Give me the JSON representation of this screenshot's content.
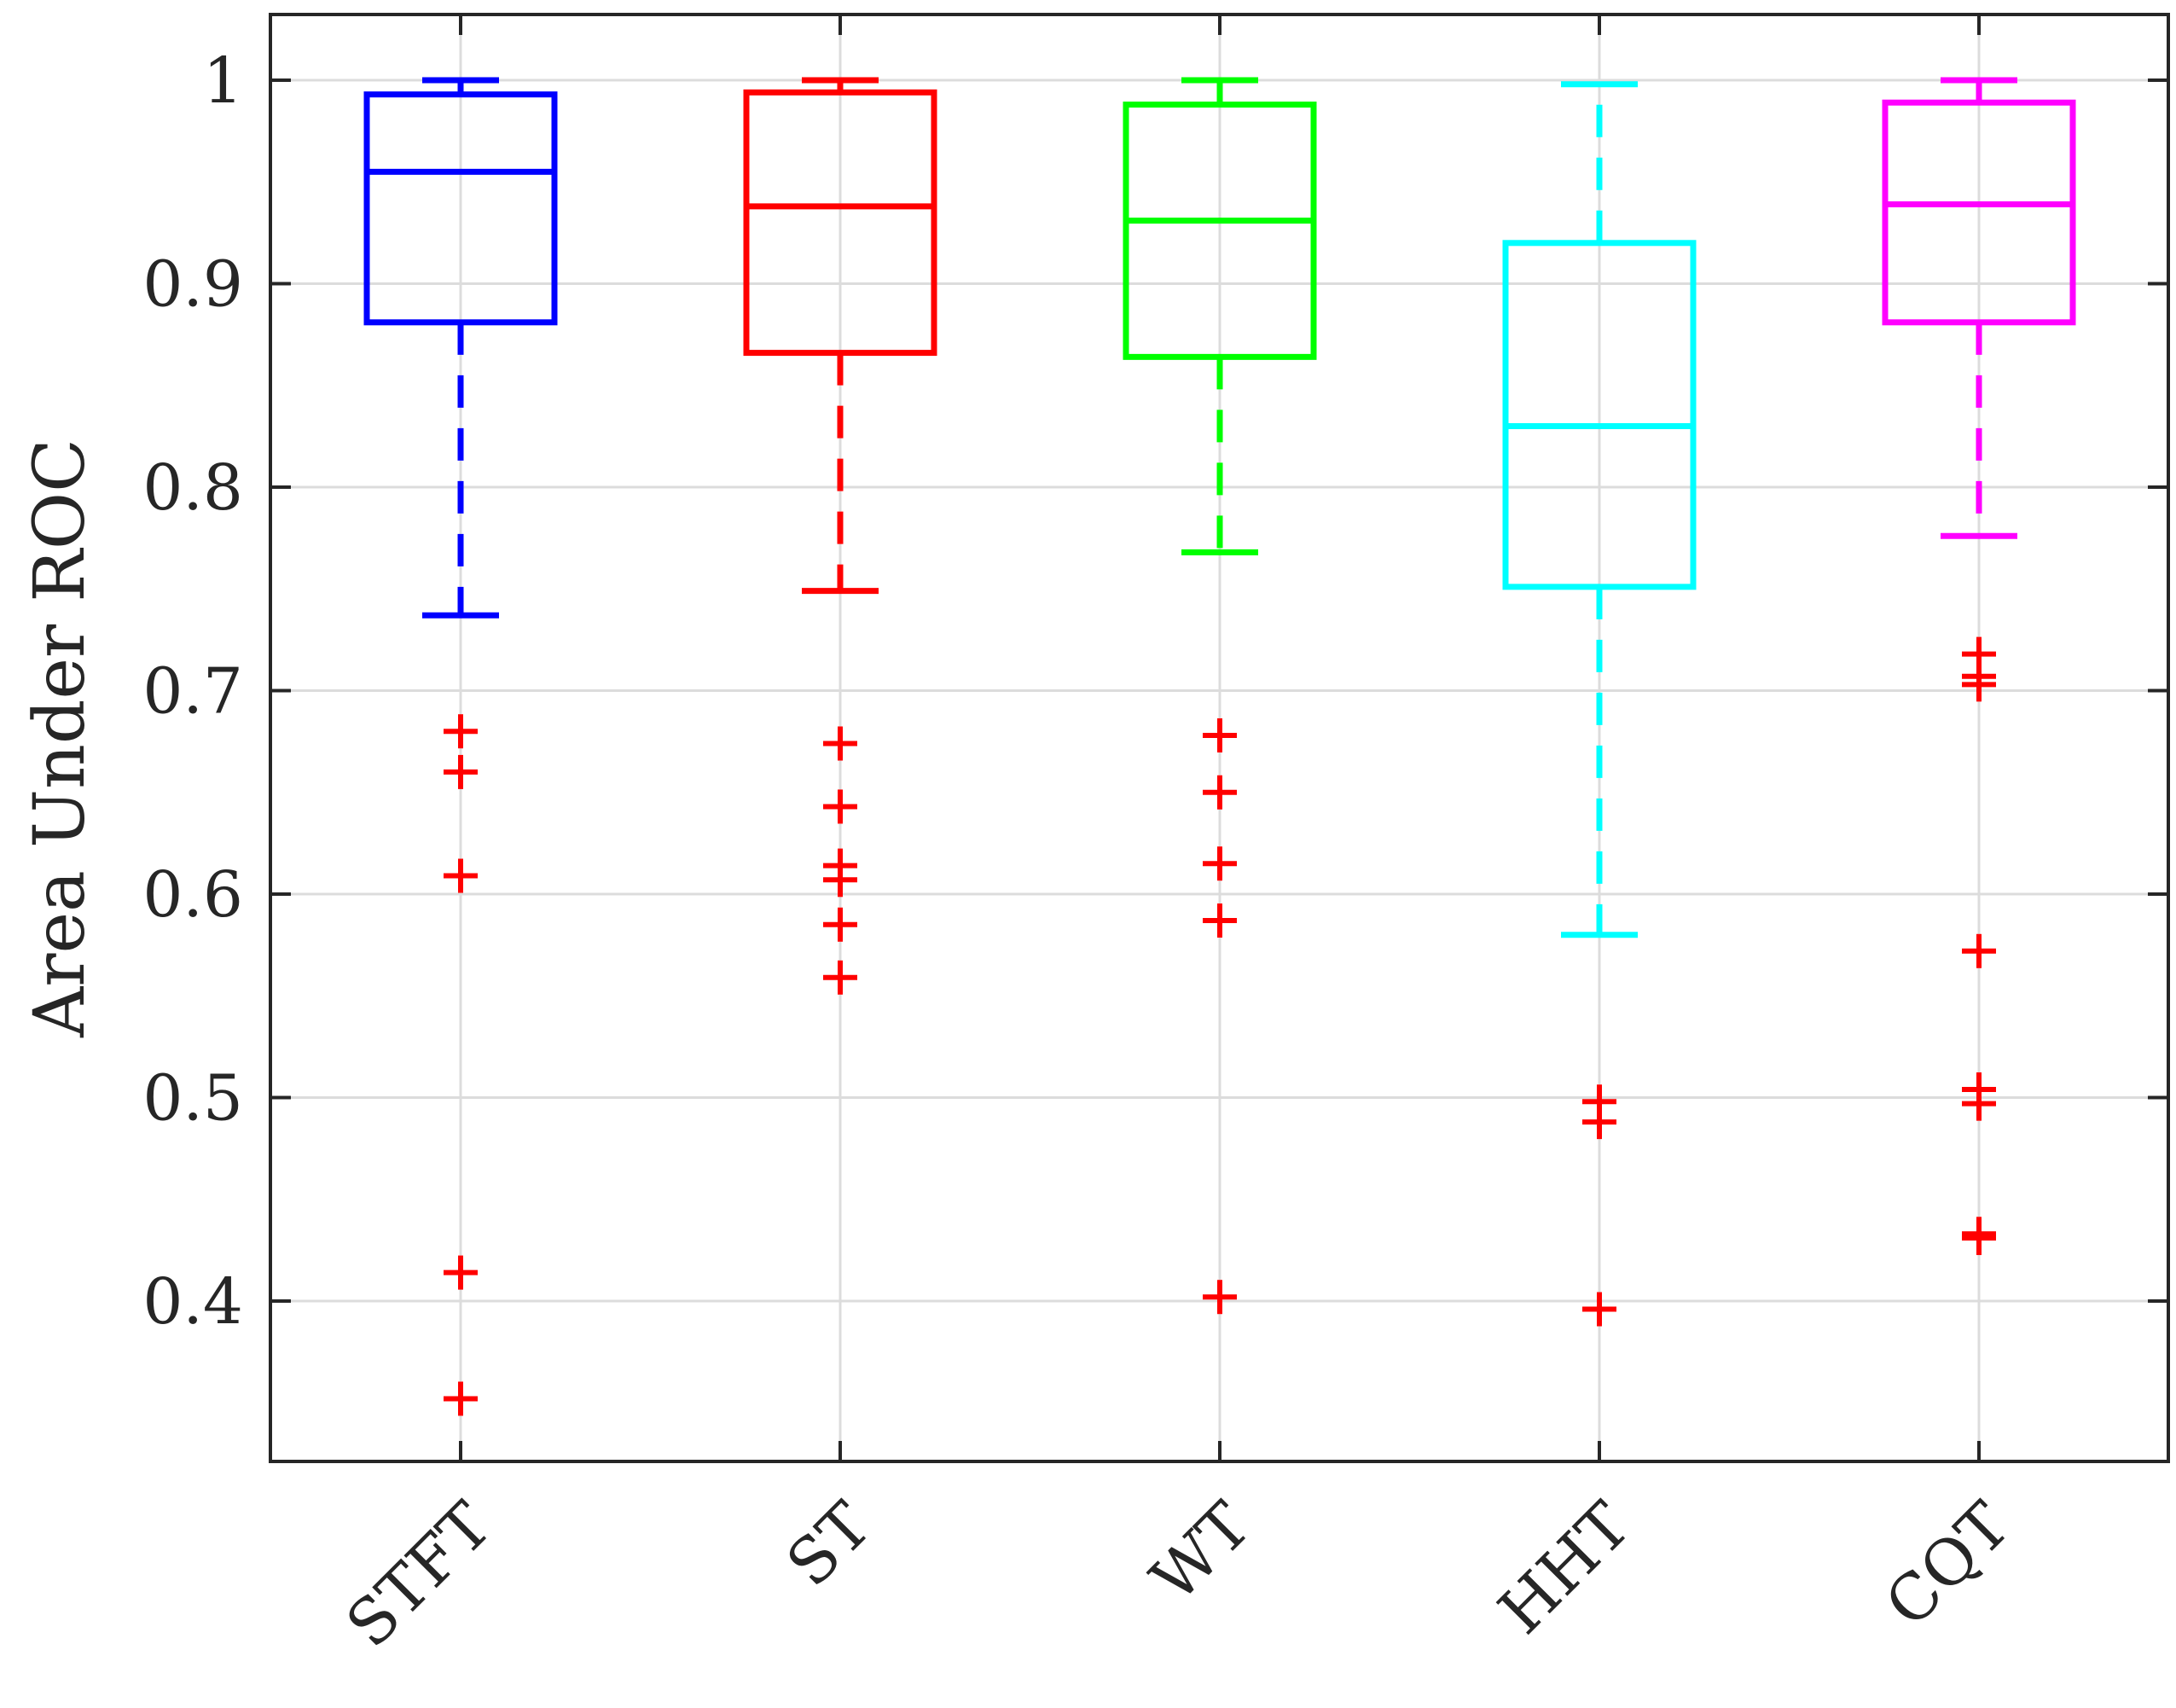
{
  "chart_data": {
    "type": "boxplot",
    "title": "",
    "xlabel": "",
    "ylabel": "Area Under ROC",
    "ylim": [
      0.32,
      1.03
    ],
    "yticks": [
      0.4,
      0.5,
      0.6,
      0.7,
      0.8,
      0.9,
      1
    ],
    "ytick_labels": [
      "0.4",
      "0.5",
      "0.6",
      "0.7",
      "0.8",
      "0.9",
      "1"
    ],
    "grid": true,
    "outlier_color": "#ff0000",
    "series": [
      {
        "name": "STFT",
        "color": "#0000ff",
        "whisker_low": 0.737,
        "q1": 0.881,
        "median": 0.955,
        "q3": 0.993,
        "whisker_high": 1.0,
        "outliers": [
          0.68,
          0.66,
          0.609,
          0.414,
          0.352
        ]
      },
      {
        "name": "ST",
        "color": "#ff0000",
        "whisker_low": 0.749,
        "q1": 0.866,
        "median": 0.938,
        "q3": 0.994,
        "whisker_high": 1.0,
        "outliers": [
          0.674,
          0.643,
          0.614,
          0.607,
          0.585,
          0.559
        ]
      },
      {
        "name": "WT",
        "color": "#00ff00",
        "whisker_low": 0.768,
        "q1": 0.864,
        "median": 0.931,
        "q3": 0.988,
        "whisker_high": 1.0,
        "outliers": [
          0.678,
          0.65,
          0.615,
          0.587,
          0.402
        ]
      },
      {
        "name": "HHT",
        "color": "#00ffff",
        "whisker_low": 0.58,
        "q1": 0.751,
        "median": 0.83,
        "q3": 0.92,
        "whisker_high": 0.998,
        "outliers": [
          0.498,
          0.488,
          0.396
        ]
      },
      {
        "name": "CQT",
        "color": "#ff00ff",
        "whisker_low": 0.776,
        "q1": 0.881,
        "median": 0.939,
        "q3": 0.989,
        "whisker_high": 1.0,
        "outliers": [
          0.718,
          0.707,
          0.703,
          0.572,
          0.504,
          0.497,
          0.433,
          0.431
        ]
      }
    ]
  }
}
